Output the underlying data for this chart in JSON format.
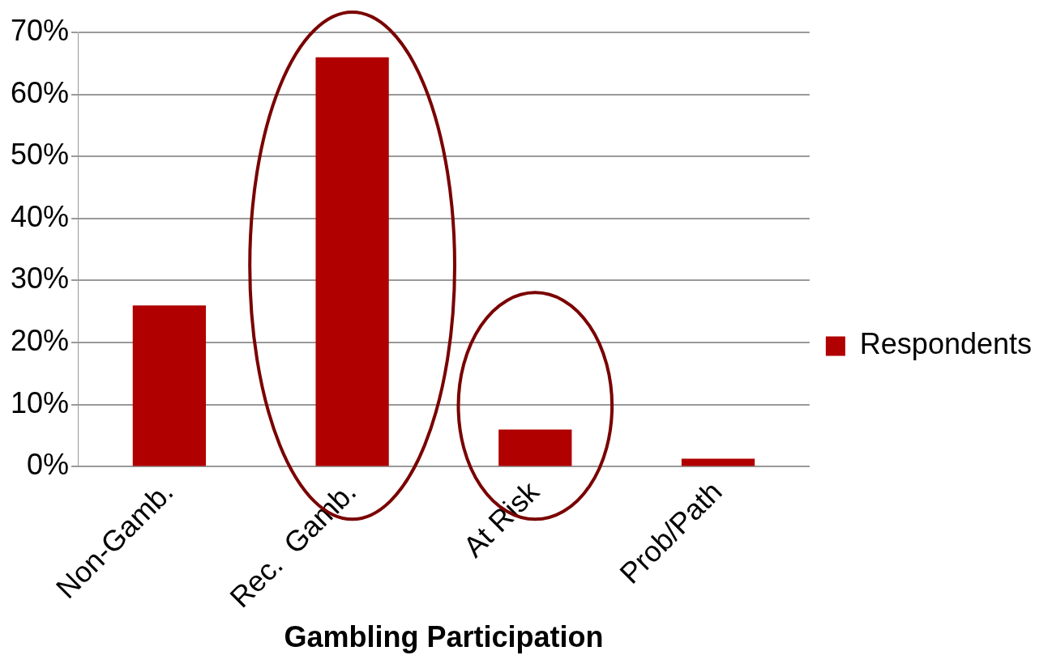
{
  "chart_data": {
    "type": "bar",
    "xlabel": "Gambling Participation",
    "categories": [
      "Non-Gamb.",
      "Rec.  Gamb.",
      "At Risk",
      "Prob/Path"
    ],
    "series": [
      {
        "name": "Respondents",
        "color": "#b00000",
        "values": [
          26,
          66,
          6,
          1.3
        ]
      }
    ],
    "ylim": [
      0,
      70
    ],
    "yticks": [
      {
        "value": 0,
        "label": "0%"
      },
      {
        "value": 10,
        "label": "10%"
      },
      {
        "value": 20,
        "label": "20%"
      },
      {
        "value": 30,
        "label": "30%"
      },
      {
        "value": 40,
        "label": "40%"
      },
      {
        "value": 50,
        "label": "50%"
      },
      {
        "value": 60,
        "label": "60%"
      },
      {
        "value": 70,
        "label": "70%"
      }
    ],
    "grid": "y",
    "legend": "right"
  }
}
